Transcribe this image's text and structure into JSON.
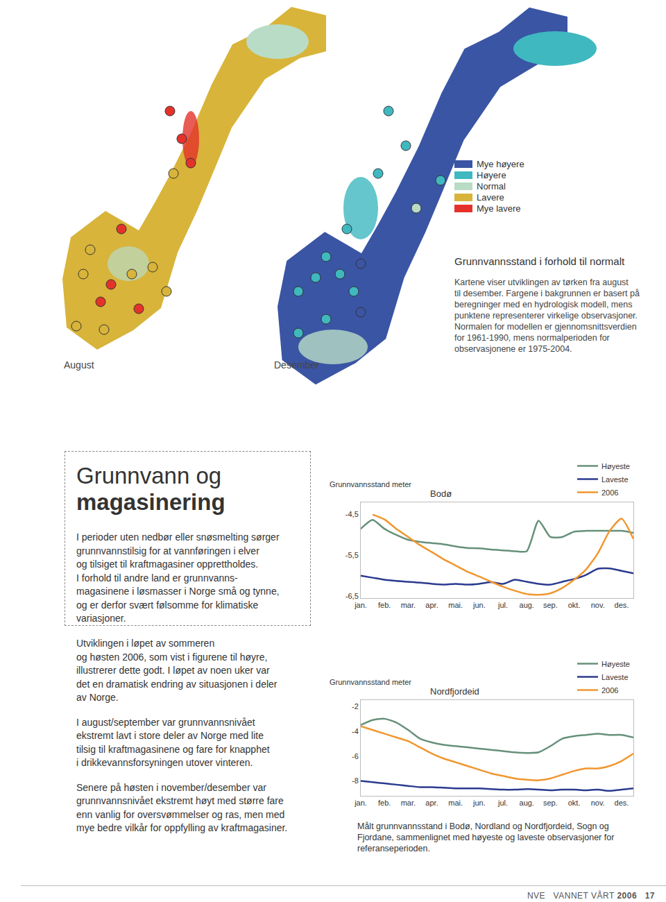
{
  "chart_data": [
    {
      "type": "line",
      "title": "Bodø",
      "y_label": "Grunnvannsstand meter",
      "categories": [
        "jan.",
        null,
        "feb.",
        null,
        "mar.",
        null,
        "apr.",
        null,
        "mai.",
        null,
        "jun.",
        null,
        "jul.",
        null,
        "aug.",
        null,
        "sep.",
        null,
        "okt.",
        null,
        "nov.",
        null,
        "des.",
        null
      ],
      "series": [
        {
          "name": "Høyeste",
          "color": "#66907a",
          "values": [
            -4.85,
            -4.63,
            -4.85,
            -5.0,
            -5.12,
            -5.17,
            -5.2,
            -5.23,
            -5.28,
            -5.32,
            -5.33,
            -5.36,
            -5.38,
            -5.4,
            -5.4,
            -4.65,
            -5.05,
            -5.05,
            -4.92,
            -4.9,
            -4.9,
            -4.9,
            -4.9,
            -4.95
          ]
        },
        {
          "name": "Laveste",
          "color": "#2b3a8f",
          "values": [
            -6.0,
            -6.05,
            -6.1,
            -6.13,
            -6.15,
            -6.17,
            -6.2,
            -6.22,
            -6.2,
            -6.22,
            -6.2,
            -6.16,
            -6.2,
            -6.1,
            -6.15,
            -6.2,
            -6.22,
            -6.15,
            -6.08,
            -5.98,
            -5.83,
            -5.82,
            -5.88,
            -5.94
          ]
        },
        {
          "name": "2006",
          "color": "#f0962e",
          "values": [
            null,
            -4.5,
            -4.62,
            -4.85,
            -5.05,
            -5.25,
            -5.42,
            -5.6,
            -5.75,
            -5.9,
            -6.02,
            -6.15,
            -6.27,
            -6.37,
            -6.45,
            -6.47,
            -6.43,
            -6.3,
            -6.1,
            -5.85,
            -5.45,
            -4.9,
            -4.6,
            -5.1
          ]
        }
      ],
      "ylim": [
        -6.55,
        -4.2
      ],
      "yticks": [
        {
          "value": -4.5,
          "label": "-4,5"
        },
        {
          "value": -5.5,
          "label": "-5,5"
        },
        {
          "value": -6.5,
          "label": "-6,5"
        }
      ],
      "grid": false,
      "legend": "top right"
    },
    {
      "type": "line",
      "title": "Nordfjordeid",
      "y_label": "Grunnvannsstand meter",
      "categories": [
        "jan.",
        null,
        "feb.",
        null,
        "mar.",
        null,
        "apr.",
        null,
        "mai.",
        null,
        "jun.",
        null,
        "jul.",
        null,
        "aug.",
        null,
        "sep.",
        null,
        "okt.",
        null,
        "nov.",
        null,
        "des.",
        null
      ],
      "series": [
        {
          "name": "Høyeste",
          "color": "#66907a",
          "values": [
            -3.5,
            -3.1,
            -3.0,
            -3.3,
            -3.9,
            -4.6,
            -4.9,
            -5.1,
            -5.2,
            -5.3,
            -5.4,
            -5.5,
            -5.6,
            -5.7,
            -5.75,
            -5.7,
            -5.2,
            -4.6,
            -4.4,
            -4.3,
            -4.2,
            -4.3,
            -4.3,
            -4.5
          ]
        },
        {
          "name": "Laveste",
          "color": "#2b3a8f",
          "values": [
            -8.0,
            -8.1,
            -8.2,
            -8.3,
            -8.4,
            -8.5,
            -8.5,
            -8.55,
            -8.6,
            -8.6,
            -8.6,
            -8.65,
            -8.7,
            -8.7,
            -8.65,
            -8.7,
            -8.75,
            -8.7,
            -8.7,
            -8.75,
            -8.7,
            -8.8,
            -8.7,
            -8.6
          ]
        },
        {
          "name": "2006",
          "color": "#f0962e",
          "values": [
            -3.6,
            -3.9,
            -4.2,
            -4.5,
            -4.8,
            -5.3,
            -5.8,
            -6.2,
            -6.5,
            -6.8,
            -7.1,
            -7.4,
            -7.6,
            -7.8,
            -7.9,
            -7.95,
            -7.8,
            -7.5,
            -7.2,
            -7.0,
            -7.0,
            -6.8,
            -6.4,
            -5.8
          ]
        }
      ],
      "ylim": [
        -9.2,
        -1.5
      ],
      "yticks": [
        -2,
        -4,
        -6,
        -8
      ],
      "grid": false,
      "legend": "top right"
    }
  ],
  "maps": {
    "labels": [
      "August",
      "Desember"
    ],
    "legend": [
      {
        "label": "Mye høyere",
        "color": "#3a55a4"
      },
      {
        "label": "Høyere",
        "color": "#3fb8c0"
      },
      {
        "label": "Normal",
        "color": "#b9dcc6"
      },
      {
        "label": "Lavere",
        "color": "#d8b43a"
      },
      {
        "label": "Mye lavere",
        "color": "#e4322b"
      }
    ],
    "caption_title": "Grunnvannsstand i forhold til normalt",
    "caption_lines": [
      "Kartene viser utviklingen av tørken fra august",
      "til desember. Fargene i bakgrunnen er basert på",
      "beregninger med en hydrologisk modell, mens",
      "punktene representerer virkelige observasjoner.",
      "Normalen for modellen er gjennomsnittsverdien",
      "for 1961-1990, mens normalperioden for",
      "observasjonene er 1975-2004."
    ]
  },
  "article": {
    "title_line1": "Grunnvann og",
    "title_line2": "magasinering",
    "box_paragraph": [
      "I perioder uten nedbør eller snøsmelting sørger",
      "grunnvannstilsig for at vannføringen i elver",
      "og tilsiget til kraftmagasiner opprettholdes.",
      "I forhold til andre land er grunnvanns-",
      "magasinene i løsmasser i Norge små og tynne,",
      "og er derfor svært følsomme for klimatiske",
      "variasjoner."
    ],
    "paragraphs": [
      [
        "Utviklingen i løpet av sommeren",
        "og høsten 2006, som vist i figurene til høyre,",
        "illustrerer dette godt. I løpet av noen uker var",
        "det en dramatisk endring av situasjonen i deler",
        "av Norge."
      ],
      [
        "I august/september var grunnvannsnivået",
        "ekstremt lavt i store deler av Norge med lite",
        "tilsig til kraftmagasinene og fare for knapphet",
        "i drikkevannsforsyningen utover vinteren."
      ],
      [
        "Senere på høsten i november/desember var",
        "grunnvannsnivået ekstremt høyt med større fare",
        "enn vanlig for oversvømmelser og ras, men med",
        "mye bedre vilkår for oppfylling av kraftmagasiner."
      ]
    ]
  },
  "chart_caption": [
    "Målt grunnvannsstand i Bodø, Nordland og Nordfjordeid, Sogn og",
    "Fjordane, sammenlignet med høyeste og laveste observasjoner for",
    "referanseperioden."
  ],
  "footer": {
    "publisher": "NVE",
    "publication": "VANNET VÅRT",
    "year": "2006",
    "page": "17"
  }
}
